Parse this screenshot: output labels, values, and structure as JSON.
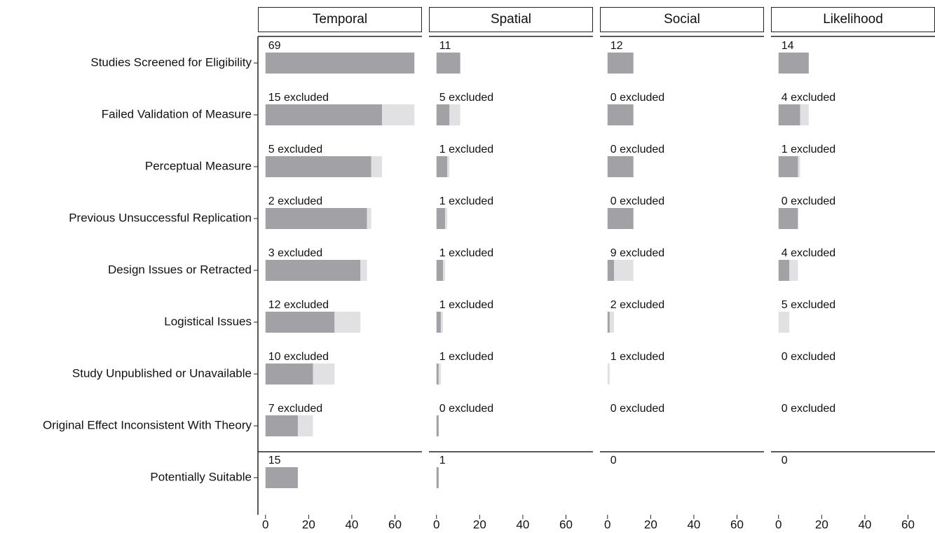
{
  "chart_data": [
    {
      "type": "bar",
      "title": "Temporal",
      "categories": [
        "Studies Screened for Eligibility",
        "Failed Validation of Measure",
        "Perceptual Measure",
        "Previous Unsuccessful Replication",
        "Design Issues or Retracted",
        "Logistical Issues",
        "Study Unpublished or Unavailable",
        "Original Effect Inconsistent With Theory",
        "Potentially Suitable"
      ],
      "series": [
        {
          "color": "#a2a2a6",
          "values": [
            69,
            54,
            49,
            47,
            44,
            32,
            22,
            15,
            15
          ]
        },
        {
          "color": "#e1e1e3",
          "values": [
            null,
            15,
            5,
            2,
            3,
            12,
            10,
            7,
            null
          ],
          "value_labels": [
            null,
            "15 excluded",
            "5 excluded",
            "2 excluded",
            "3 excluded",
            "12 excluded",
            "10 excluded",
            "7 excluded",
            null
          ]
        }
      ],
      "xlim": [
        -3.5,
        72.5
      ],
      "xticks": [
        0,
        20,
        40,
        60
      ]
    },
    {
      "type": "bar",
      "title": "Spatial",
      "series": [
        {
          "color": "#a2a2a6",
          "values": [
            11,
            6,
            5,
            4,
            3,
            2,
            1,
            1,
            1
          ]
        },
        {
          "color": "#e1e1e3",
          "values": [
            null,
            5,
            1,
            1,
            1,
            1,
            1,
            0,
            null
          ],
          "value_labels": [
            null,
            "5 excluded",
            "1 excluded",
            "1 excluded",
            "1 excluded",
            "1 excluded",
            "1 excluded",
            "0 excluded",
            null
          ]
        }
      ],
      "xlim": [
        -3.5,
        72.5
      ],
      "xticks": [
        0,
        20,
        40,
        60
      ]
    },
    {
      "type": "bar",
      "title": "Social",
      "series": [
        {
          "color": "#a2a2a6",
          "values": [
            12,
            12,
            12,
            12,
            3,
            1,
            0,
            0,
            0
          ]
        },
        {
          "color": "#e1e1e3",
          "values": [
            null,
            0,
            0,
            0,
            9,
            2,
            1,
            0,
            null
          ],
          "value_labels": [
            null,
            "0 excluded",
            "0 excluded",
            "0 excluded",
            "9 excluded",
            "2 excluded",
            "1 excluded",
            "0 excluded",
            null
          ]
        }
      ],
      "xlim": [
        -3.5,
        72.5
      ],
      "xticks": [
        0,
        20,
        40,
        60
      ]
    },
    {
      "type": "bar",
      "title": "Likelihood",
      "series": [
        {
          "color": "#a2a2a6",
          "values": [
            14,
            10,
            9,
            9,
            5,
            0,
            0,
            0,
            0
          ]
        },
        {
          "color": "#e1e1e3",
          "values": [
            null,
            4,
            1,
            0,
            4,
            5,
            0,
            0,
            null
          ],
          "value_labels": [
            null,
            "4 excluded",
            "1 excluded",
            "0 excluded",
            "4 excluded",
            "5 excluded",
            "0 excluded",
            "0 excluded",
            null
          ]
        }
      ],
      "xlim": [
        -3.5,
        72.5
      ],
      "xticks": [
        0,
        20,
        40,
        60
      ]
    }
  ]
}
